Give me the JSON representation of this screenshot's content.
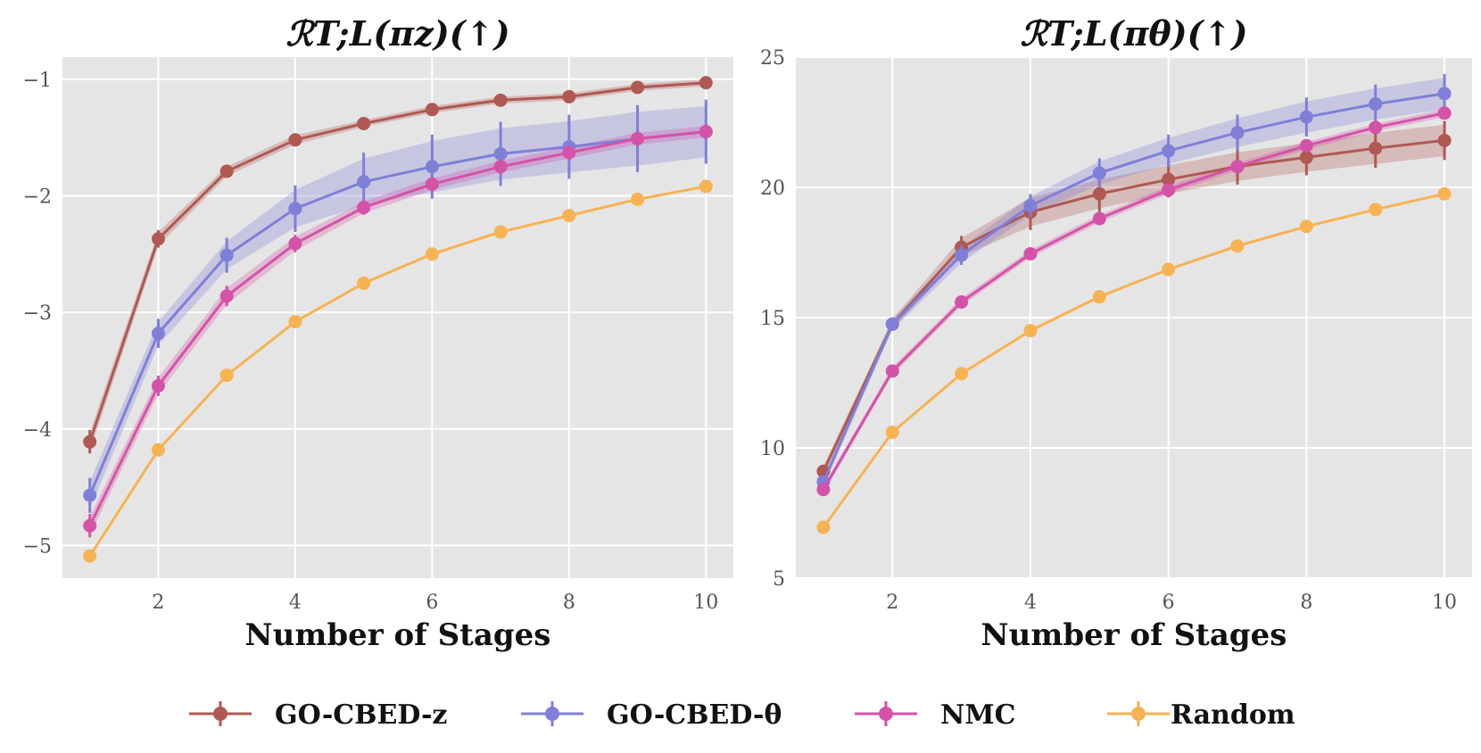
{
  "colors": {
    "GO-CBED-z": "#b05852",
    "GO-CBED-θ": "#7f7fd8",
    "NMC": "#d452a8",
    "Random": "#f7b252"
  },
  "legend": {
    "items": [
      "GO-CBED-z",
      "GO-CBED-θ",
      "NMC",
      "Random"
    ]
  },
  "chart_data": [
    {
      "type": "line",
      "title": "ℛT;L(πz)(↑)",
      "xlabel": "Number of Stages",
      "ylabel": "",
      "xlim": [
        0.6,
        10.4
      ],
      "ylim": [
        -5.28,
        -0.81
      ],
      "xticks": [
        2,
        4,
        6,
        8,
        10
      ],
      "xtick_labels": [
        "2",
        "4",
        "6",
        "8",
        "10"
      ],
      "yticks": [
        -5,
        -4,
        -3,
        -2,
        -1
      ],
      "ytick_labels": [
        "−5",
        "−4",
        "−3",
        "−2",
        "−1"
      ],
      "grid": true,
      "x": [
        1,
        2,
        3,
        4,
        5,
        6,
        7,
        8,
        9,
        10
      ],
      "series": [
        {
          "name": "GO-CBED-z",
          "values": [
            -4.11,
            -2.37,
            -1.79,
            -1.52,
            -1.38,
            -1.26,
            -1.18,
            -1.15,
            -1.07,
            -1.03
          ],
          "error": [
            0.08,
            0.06,
            0.04,
            0.04,
            0.03,
            0.03,
            0.03,
            0.03,
            0.03,
            0.03
          ]
        },
        {
          "name": "GO-CBED-θ",
          "values": [
            -4.57,
            -3.18,
            -2.51,
            -2.11,
            -1.88,
            -1.75,
            -1.64,
            -1.58,
            -1.51,
            -1.45
          ],
          "error": [
            0.12,
            0.1,
            0.12,
            0.16,
            0.2,
            0.22,
            0.22,
            0.22,
            0.23,
            0.22
          ]
        },
        {
          "name": "NMC",
          "values": [
            -4.83,
            -3.63,
            -2.86,
            -2.41,
            -2.1,
            -1.9,
            -1.75,
            -1.63,
            -1.51,
            -1.45
          ],
          "error": [
            0.08,
            0.07,
            0.07,
            0.06,
            0.05,
            0.05,
            0.05,
            0.05,
            0.05,
            0.05
          ]
        },
        {
          "name": "Random",
          "values": [
            -5.09,
            -4.18,
            -3.54,
            -3.08,
            -2.75,
            -2.5,
            -2.31,
            -2.17,
            -2.03,
            -1.92
          ],
          "error": [
            0.01,
            0.01,
            0.01,
            0.01,
            0.01,
            0.01,
            0.01,
            0.01,
            0.01,
            0.01
          ]
        }
      ]
    },
    {
      "type": "line",
      "title": "ℛT;L(πθ)(↑)",
      "xlabel": "Number of Stages",
      "ylabel": "",
      "xlim": [
        0.6,
        10.4
      ],
      "ylim": [
        5,
        25
      ],
      "xticks": [
        2,
        4,
        6,
        8,
        10
      ],
      "xtick_labels": [
        "2",
        "4",
        "6",
        "8",
        "10"
      ],
      "yticks": [
        5,
        10,
        15,
        20,
        25
      ],
      "ytick_labels": [
        "5",
        "10",
        "15",
        "20",
        "25"
      ],
      "grid": true,
      "x": [
        1,
        2,
        3,
        4,
        5,
        6,
        7,
        8,
        9,
        10
      ],
      "series": [
        {
          "name": "GO-CBED-z",
          "values": [
            9.1,
            14.75,
            17.7,
            19.05,
            19.75,
            20.3,
            20.8,
            21.15,
            21.5,
            21.8
          ],
          "error": [
            0.2,
            0.2,
            0.35,
            0.55,
            0.55,
            0.55,
            0.55,
            0.55,
            0.6,
            0.6
          ]
        },
        {
          "name": "GO-CBED-θ",
          "values": [
            8.7,
            14.75,
            17.4,
            19.3,
            20.55,
            21.4,
            22.1,
            22.7,
            23.2,
            23.6
          ],
          "error": [
            0.2,
            0.2,
            0.3,
            0.35,
            0.45,
            0.5,
            0.55,
            0.6,
            0.6,
            0.6
          ]
        },
        {
          "name": "NMC",
          "values": [
            8.4,
            12.95,
            15.6,
            17.45,
            18.8,
            19.9,
            20.8,
            21.6,
            22.3,
            22.85
          ],
          "error": [
            0.15,
            0.15,
            0.15,
            0.15,
            0.15,
            0.15,
            0.15,
            0.15,
            0.15,
            0.15
          ]
        },
        {
          "name": "Random",
          "values": [
            6.95,
            10.6,
            12.85,
            14.5,
            15.8,
            16.85,
            17.75,
            18.5,
            19.15,
            19.75
          ],
          "error": [
            0.05,
            0.05,
            0.05,
            0.05,
            0.05,
            0.05,
            0.05,
            0.05,
            0.05,
            0.05
          ]
        }
      ]
    }
  ]
}
